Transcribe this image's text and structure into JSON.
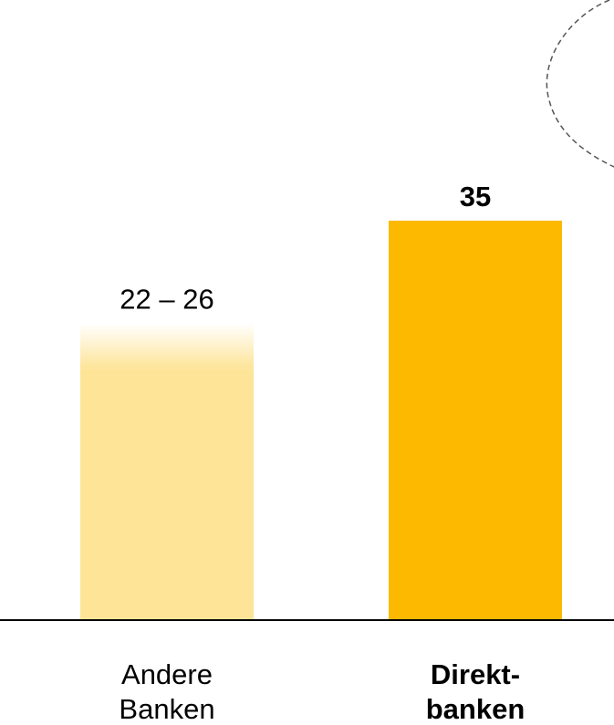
{
  "chart_data": {
    "type": "bar",
    "categories": [
      [
        "Andere",
        "Banken"
      ],
      [
        "Direkt-",
        "banken"
      ]
    ],
    "values": [
      [
        22,
        26
      ],
      35
    ],
    "value_labels": [
      "22 – 26",
      "35"
    ],
    "colors": [
      "#fde497",
      "#fcb900"
    ],
    "bold": [
      false,
      true
    ],
    "ylim": [
      0,
      40
    ]
  }
}
